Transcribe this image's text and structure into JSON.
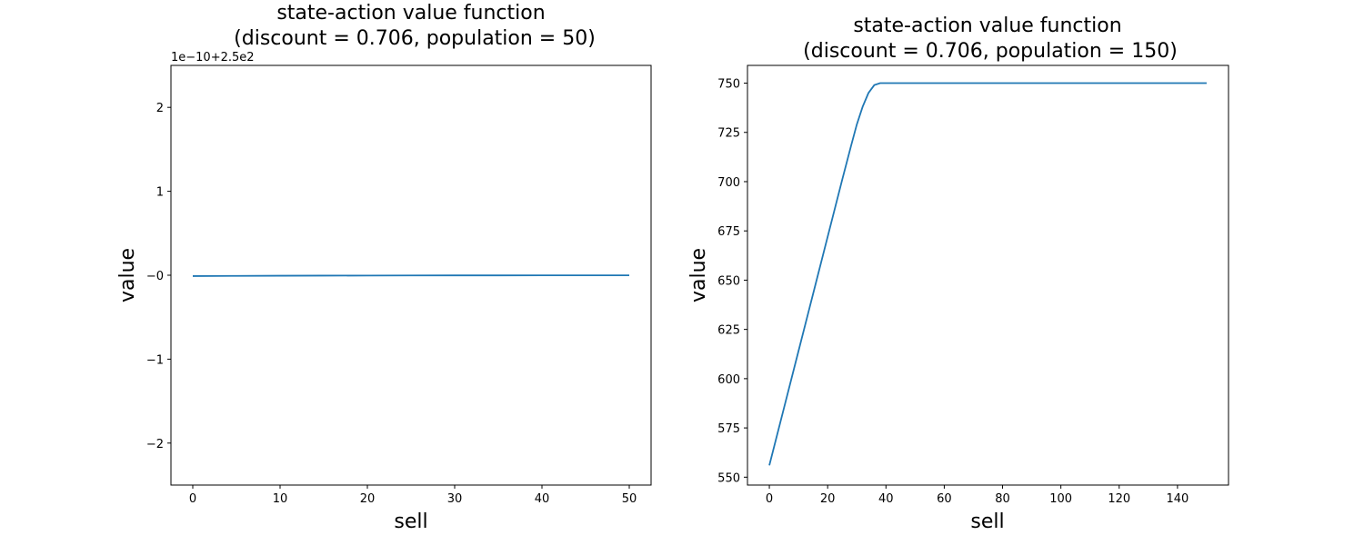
{
  "chart_data": [
    {
      "type": "line",
      "title_line1": "state-action value function",
      "title_line2": "(discount = 0.706, population = 50)",
      "xlabel": "sell",
      "ylabel": "value",
      "offset_text": "1e−10+2.5e2",
      "xlim": [
        -2.5,
        52.5
      ],
      "ylim": [
        -2.5,
        2.5
      ],
      "xticks": [
        0,
        10,
        20,
        30,
        40,
        50
      ],
      "xtick_labels": [
        "0",
        "10",
        "20",
        "30",
        "40",
        "50"
      ],
      "yticks": [
        -2,
        -1,
        0,
        1,
        2
      ],
      "ytick_labels": [
        "−2",
        "−1",
        "−0",
        "1",
        "2"
      ],
      "line_color": "#1f77b4",
      "series": [
        {
          "x": [
            0,
            5,
            10,
            15,
            20,
            25,
            30,
            35,
            40,
            45,
            50
          ],
          "y": [
            -0.01,
            -0.008,
            -0.006,
            -0.005,
            -0.004,
            -0.003,
            -0.002,
            -0.002,
            -0.001,
            -0.001,
            -0.001
          ]
        }
      ]
    },
    {
      "type": "line",
      "title_line1": "state-action value function",
      "title_line2": "(discount = 0.706, population = 150)",
      "xlabel": "sell",
      "ylabel": "value",
      "xlim": [
        -7.5,
        157.5
      ],
      "ylim": [
        546,
        759
      ],
      "xticks": [
        0,
        20,
        40,
        60,
        80,
        100,
        120,
        140
      ],
      "xtick_labels": [
        "0",
        "20",
        "40",
        "60",
        "80",
        "100",
        "120",
        "140"
      ],
      "yticks": [
        550,
        575,
        600,
        625,
        650,
        675,
        700,
        725,
        750
      ],
      "ytick_labels": [
        "550",
        "575",
        "600",
        "625",
        "650",
        "675",
        "700",
        "725",
        "750"
      ],
      "line_color": "#1f77b4",
      "series": [
        {
          "x": [
            0,
            5,
            10,
            15,
            20,
            25,
            28,
            30,
            32,
            34,
            36,
            38,
            40,
            45,
            50,
            60,
            80,
            100,
            120,
            140,
            150
          ],
          "y": [
            556,
            585,
            614,
            643,
            672,
            701,
            718,
            729,
            738,
            745,
            749,
            750,
            750,
            750,
            750,
            750,
            750,
            750,
            750,
            750,
            750
          ]
        }
      ]
    }
  ]
}
